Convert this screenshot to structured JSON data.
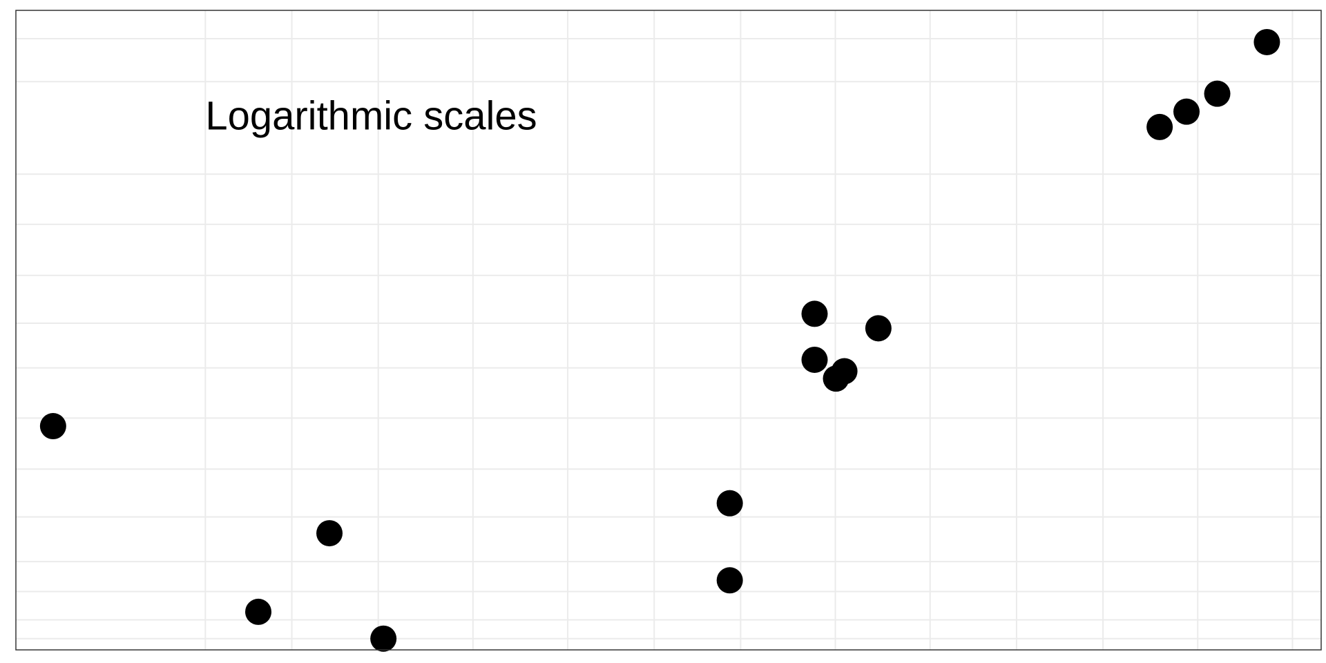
{
  "chart_data": {
    "type": "scatter",
    "title": "",
    "xlabel": "",
    "ylabel": "",
    "x_scale": "log",
    "y_scale": "log",
    "xlim": [
      0.3,
      1200
    ],
    "ylim": [
      0.35,
      700
    ],
    "grid": true,
    "legend": "none",
    "annotations": [
      {
        "text": "Logarithmic scales",
        "x": 1,
        "y": 200
      }
    ],
    "point_color": "#000000",
    "grid_color": "#ebebeb",
    "series": [
      {
        "points": [
          {
            "x": 0.38,
            "y": 5.0
          },
          {
            "x": 1.4,
            "y": 0.55
          },
          {
            "x": 2.2,
            "y": 1.4
          },
          {
            "x": 3.1,
            "y": 0.4
          },
          {
            "x": 28,
            "y": 0.8
          },
          {
            "x": 28,
            "y": 2.0
          },
          {
            "x": 48,
            "y": 19
          },
          {
            "x": 48,
            "y": 11
          },
          {
            "x": 58,
            "y": 9.6
          },
          {
            "x": 55,
            "y": 8.8
          },
          {
            "x": 72,
            "y": 16
          },
          {
            "x": 430,
            "y": 175
          },
          {
            "x": 510,
            "y": 210
          },
          {
            "x": 620,
            "y": 260
          },
          {
            "x": 850,
            "y": 480
          }
        ]
      }
    ]
  }
}
